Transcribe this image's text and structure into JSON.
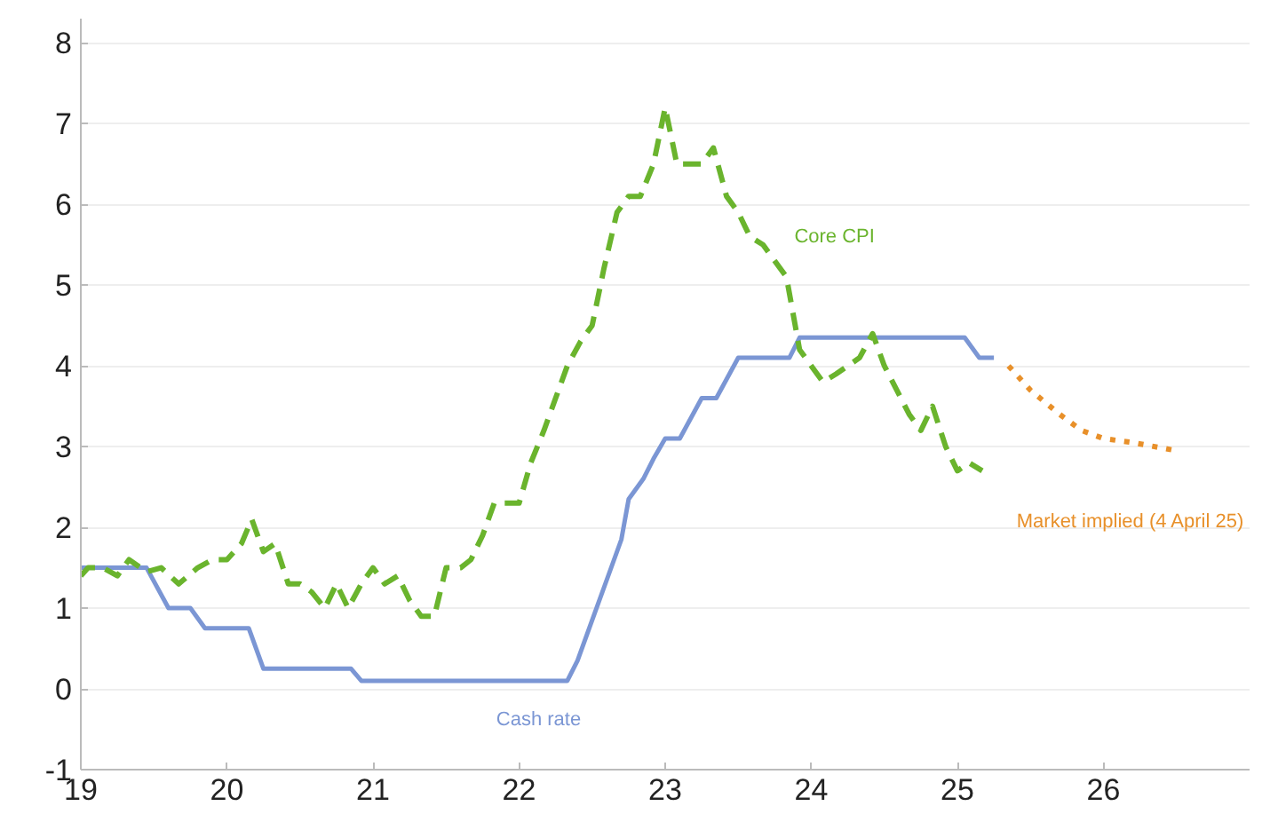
{
  "chart_data": {
    "type": "line",
    "xlim": [
      19,
      27
    ],
    "xticks": [
      19,
      20,
      21,
      22,
      23,
      24,
      25,
      26
    ],
    "ylim": [
      -1,
      8.3
    ],
    "yticks": [
      -1,
      0,
      1,
      2,
      3,
      4,
      5,
      6,
      7,
      8
    ],
    "grid": "y",
    "series": [
      {
        "name": "Cash rate",
        "color": "#7b96d4",
        "line_style": "solid",
        "x": [
          19.0,
          19.45,
          19.6,
          19.75,
          19.85,
          20.15,
          20.25,
          20.85,
          20.92,
          22.33,
          22.4,
          22.5,
          22.6,
          22.7,
          22.75,
          22.85,
          22.92,
          23.0,
          23.1,
          23.25,
          23.35,
          23.5,
          23.85,
          23.92,
          25.05,
          25.15,
          25.25
        ],
        "values": [
          1.5,
          1.5,
          1.0,
          1.0,
          0.75,
          0.75,
          0.25,
          0.25,
          0.1,
          0.1,
          0.35,
          0.85,
          1.35,
          1.85,
          2.35,
          2.6,
          2.85,
          3.1,
          3.1,
          3.6,
          3.6,
          4.1,
          4.1,
          4.35,
          4.35,
          4.1,
          4.1
        ]
      },
      {
        "name": "Core CPI",
        "color": "#6ab42d",
        "line_style": "dashed",
        "x": [
          19.0,
          19.05,
          19.15,
          19.25,
          19.33,
          19.45,
          19.55,
          19.67,
          19.8,
          19.9,
          20.0,
          20.1,
          20.17,
          20.25,
          20.33,
          20.42,
          20.5,
          20.58,
          20.67,
          20.75,
          20.83,
          20.92,
          21.0,
          21.08,
          21.17,
          21.25,
          21.33,
          21.42,
          21.5,
          21.6,
          21.67,
          21.75,
          21.83,
          21.92,
          22.0,
          22.08,
          22.17,
          22.25,
          22.33,
          22.42,
          22.5,
          22.58,
          22.67,
          22.75,
          22.83,
          22.92,
          23.0,
          23.08,
          23.17,
          23.25,
          23.33,
          23.42,
          23.5,
          23.58,
          23.67,
          23.75,
          23.83,
          23.92,
          24.0,
          24.08,
          24.17,
          24.33,
          24.42,
          24.5,
          24.67,
          24.75,
          24.83,
          24.92,
          25.0,
          25.08,
          25.17
        ],
        "values": [
          1.4,
          1.5,
          1.5,
          1.4,
          1.6,
          1.45,
          1.5,
          1.3,
          1.5,
          1.6,
          1.6,
          1.8,
          2.1,
          1.7,
          1.8,
          1.3,
          1.3,
          1.2,
          1.0,
          1.3,
          1.0,
          1.3,
          1.5,
          1.3,
          1.4,
          1.1,
          0.9,
          0.9,
          1.5,
          1.5,
          1.6,
          1.9,
          2.3,
          2.3,
          2.3,
          2.8,
          3.2,
          3.6,
          4.0,
          4.3,
          4.5,
          5.2,
          5.9,
          6.1,
          6.1,
          6.5,
          7.2,
          6.5,
          6.5,
          6.5,
          6.7,
          6.1,
          5.9,
          5.6,
          5.5,
          5.3,
          5.1,
          4.2,
          4.0,
          3.8,
          3.9,
          4.1,
          4.4,
          4.0,
          3.4,
          3.2,
          3.5,
          3.0,
          2.7,
          2.8,
          2.7
        ]
      },
      {
        "name": "Market implied (4 April 25)",
        "color": "#e8902a",
        "line_style": "dotted",
        "x": [
          25.35,
          25.5,
          25.7,
          25.85,
          26.0,
          26.2,
          26.5
        ],
        "values": [
          4.0,
          3.7,
          3.4,
          3.2,
          3.1,
          3.05,
          2.95
        ]
      }
    ]
  }
}
